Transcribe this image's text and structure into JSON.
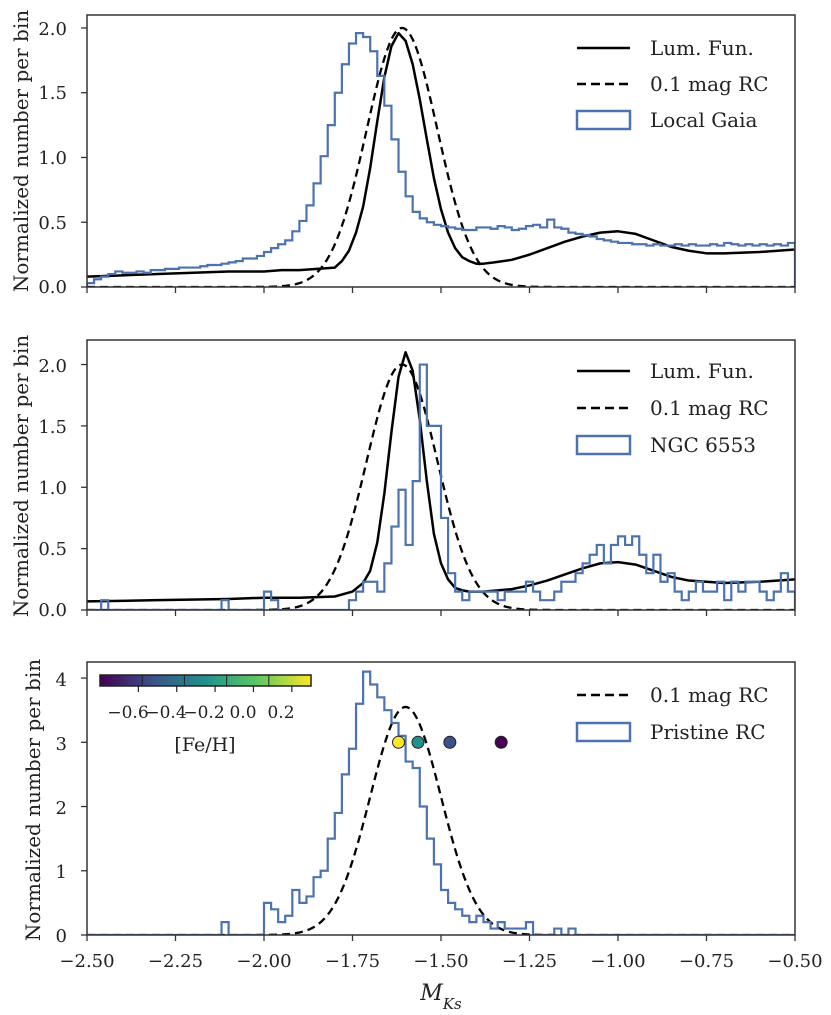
{
  "chart_data": [
    {
      "type": "line",
      "panel": "top",
      "ylabel": "Normalized number per bin",
      "xlabel": "",
      "xlim": [
        -2.5,
        -0.5
      ],
      "ylim": [
        0,
        2.1
      ],
      "yticks": [
        0.0,
        0.5,
        1.0,
        1.5,
        2.0
      ],
      "ytick_labels": [
        "0.0",
        "0.5",
        "1.0",
        "1.5",
        "2.0"
      ],
      "xticks": [
        -2.5,
        -2.25,
        -2.0,
        -1.75,
        -1.5,
        -1.25,
        -1.0,
        -0.75,
        -0.5
      ],
      "legend_position": "top-right",
      "legend": [
        {
          "label": "Lum. Fun.",
          "style": "solid"
        },
        {
          "label": "0.1 mag RC",
          "style": "dashed"
        },
        {
          "label": "Local Gaia",
          "style": "histogram"
        }
      ],
      "series": [
        {
          "name": "Lum. Fun.",
          "style": "solid",
          "color": "#000000",
          "x": [
            -2.5,
            -2.4,
            -2.3,
            -2.2,
            -2.1,
            -2.0,
            -1.95,
            -1.9,
            -1.85,
            -1.8,
            -1.78,
            -1.76,
            -1.74,
            -1.72,
            -1.7,
            -1.68,
            -1.66,
            -1.64,
            -1.62,
            -1.6,
            -1.58,
            -1.56,
            -1.54,
            -1.52,
            -1.5,
            -1.48,
            -1.46,
            -1.44,
            -1.42,
            -1.4,
            -1.38,
            -1.35,
            -1.3,
            -1.25,
            -1.2,
            -1.15,
            -1.1,
            -1.05,
            -1.0,
            -0.95,
            -0.9,
            -0.85,
            -0.8,
            -0.75,
            -0.7,
            -0.6,
            -0.5
          ],
          "y": [
            0.08,
            0.09,
            0.1,
            0.11,
            0.12,
            0.12,
            0.13,
            0.13,
            0.14,
            0.15,
            0.2,
            0.28,
            0.42,
            0.62,
            0.92,
            1.28,
            1.62,
            1.86,
            1.96,
            1.9,
            1.72,
            1.45,
            1.14,
            0.84,
            0.6,
            0.42,
            0.3,
            0.23,
            0.2,
            0.18,
            0.18,
            0.19,
            0.21,
            0.25,
            0.3,
            0.35,
            0.39,
            0.42,
            0.43,
            0.41,
            0.36,
            0.31,
            0.28,
            0.26,
            0.26,
            0.27,
            0.29
          ]
        },
        {
          "name": "0.1 mag RC",
          "style": "dashed",
          "color": "#000000",
          "gaussian": {
            "mu": -1.61,
            "sigma": 0.1,
            "amplitude": 2.0
          }
        },
        {
          "name": "Local Gaia",
          "style": "histogram",
          "color": "#4c72b0",
          "bin_start": -2.5,
          "bin_width": 0.02,
          "values": [
            0.03,
            0.06,
            0.08,
            0.1,
            0.12,
            0.11,
            0.11,
            0.12,
            0.11,
            0.13,
            0.13,
            0.14,
            0.14,
            0.15,
            0.15,
            0.15,
            0.16,
            0.17,
            0.17,
            0.18,
            0.19,
            0.2,
            0.22,
            0.22,
            0.24,
            0.27,
            0.3,
            0.33,
            0.36,
            0.43,
            0.51,
            0.63,
            0.8,
            1.01,
            1.25,
            1.5,
            1.72,
            1.88,
            1.96,
            1.93,
            1.82,
            1.63,
            1.4,
            1.14,
            0.89,
            0.7,
            0.58,
            0.53,
            0.5,
            0.48,
            0.47,
            0.46,
            0.45,
            0.44,
            0.44,
            0.46,
            0.46,
            0.45,
            0.47,
            0.46,
            0.44,
            0.45,
            0.47,
            0.48,
            0.46,
            0.52,
            0.46,
            0.45,
            0.42,
            0.41,
            0.4,
            0.39,
            0.37,
            0.36,
            0.35,
            0.34,
            0.34,
            0.33,
            0.33,
            0.32,
            0.33,
            0.32,
            0.32,
            0.33,
            0.32,
            0.33,
            0.32,
            0.32,
            0.33,
            0.32,
            0.34,
            0.33,
            0.32,
            0.33,
            0.32,
            0.33,
            0.32,
            0.33,
            0.32,
            0.34
          ]
        }
      ]
    },
    {
      "type": "line",
      "panel": "middle",
      "ylabel": "Normalized number per bin",
      "xlabel": "",
      "xlim": [
        -2.5,
        -0.5
      ],
      "ylim": [
        0,
        2.2
      ],
      "yticks": [
        0.0,
        0.5,
        1.0,
        1.5,
        2.0
      ],
      "ytick_labels": [
        "0.0",
        "0.5",
        "1.0",
        "1.5",
        "2.0"
      ],
      "xticks": [
        -2.5,
        -2.25,
        -2.0,
        -1.75,
        -1.5,
        -1.25,
        -1.0,
        -0.75,
        -0.5
      ],
      "legend_position": "top-right",
      "legend": [
        {
          "label": "Lum. Fun.",
          "style": "solid"
        },
        {
          "label": "0.1 mag RC",
          "style": "dashed"
        },
        {
          "label": "NGC 6553",
          "style": "histogram"
        }
      ],
      "series": [
        {
          "name": "Lum. Fun.",
          "style": "solid",
          "color": "#000000",
          "x": [
            -2.5,
            -2.3,
            -2.1,
            -2.0,
            -1.9,
            -1.8,
            -1.75,
            -1.72,
            -1.7,
            -1.68,
            -1.66,
            -1.64,
            -1.62,
            -1.6,
            -1.58,
            -1.56,
            -1.54,
            -1.52,
            -1.5,
            -1.48,
            -1.46,
            -1.44,
            -1.42,
            -1.38,
            -1.3,
            -1.25,
            -1.2,
            -1.15,
            -1.1,
            -1.05,
            -1.0,
            -0.95,
            -0.9,
            -0.85,
            -0.8,
            -0.7,
            -0.6,
            -0.5
          ],
          "y": [
            0.07,
            0.08,
            0.09,
            0.1,
            0.1,
            0.11,
            0.15,
            0.22,
            0.32,
            0.55,
            0.95,
            1.45,
            1.9,
            2.1,
            1.95,
            1.55,
            1.05,
            0.62,
            0.38,
            0.25,
            0.18,
            0.16,
            0.15,
            0.15,
            0.17,
            0.2,
            0.24,
            0.29,
            0.34,
            0.38,
            0.39,
            0.37,
            0.32,
            0.27,
            0.24,
            0.22,
            0.23,
            0.25
          ]
        },
        {
          "name": "0.1 mag RC",
          "style": "dashed",
          "color": "#000000",
          "gaussian": {
            "mu": -1.61,
            "sigma": 0.1,
            "amplitude": 2.0
          }
        },
        {
          "name": "NGC 6553",
          "style": "histogram",
          "color": "#4c72b0",
          "bin_start": -2.5,
          "bin_width": 0.02,
          "values": [
            0,
            0,
            0.08,
            0,
            0,
            0,
            0,
            0,
            0,
            0,
            0,
            0,
            0,
            0,
            0,
            0,
            0,
            0,
            0,
            0.08,
            0,
            0,
            0,
            0,
            0,
            0.15,
            0.08,
            0,
            0,
            0,
            0,
            0,
            0,
            0,
            0,
            0,
            0,
            0.08,
            0.15,
            0.23,
            0.23,
            0.15,
            0.38,
            0.68,
            0.98,
            0.53,
            1.05,
            2.0,
            1.5,
            1.5,
            0.75,
            0.3,
            0.15,
            0.08,
            0.15,
            0.15,
            0.15,
            0.15,
            0.08,
            0.15,
            0.15,
            0.15,
            0.23,
            0.15,
            0.08,
            0.08,
            0.15,
            0.23,
            0.23,
            0.3,
            0.38,
            0.45,
            0.53,
            0.38,
            0.53,
            0.6,
            0.53,
            0.6,
            0.45,
            0.3,
            0.45,
            0.23,
            0.3,
            0.15,
            0.08,
            0.15,
            0.23,
            0.15,
            0.15,
            0.23,
            0.08,
            0.23,
            0.15,
            0.23,
            0.23,
            0.15,
            0.08,
            0.15,
            0.3,
            0.15
          ]
        }
      ]
    },
    {
      "type": "line",
      "panel": "bottom",
      "ylabel": "Normalized number per bin",
      "xlabel": "M_Ks",
      "xlim": [
        -2.5,
        -0.5
      ],
      "ylim": [
        0,
        4.25
      ],
      "yticks": [
        0,
        1,
        2,
        3,
        4
      ],
      "ytick_labels": [
        "0",
        "1",
        "2",
        "3",
        "4"
      ],
      "xticks": [
        -2.5,
        -2.25,
        -2.0,
        -1.75,
        -1.5,
        -1.25,
        -1.0,
        -0.75,
        -0.5
      ],
      "xtick_labels": [
        "−2.50",
        "−2.25",
        "−2.00",
        "−1.75",
        "−1.50",
        "−1.25",
        "−1.00",
        "−0.75",
        "−0.50"
      ],
      "legend_position": "top-right",
      "legend": [
        {
          "label": "0.1 mag RC",
          "style": "dashed"
        },
        {
          "label": "Pristine RC",
          "style": "histogram"
        }
      ],
      "series": [
        {
          "name": "0.1 mag RC",
          "style": "dashed",
          "color": "#000000",
          "gaussian": {
            "mu": -1.6,
            "sigma": 0.1,
            "amplitude": 3.55
          }
        },
        {
          "name": "Pristine RC",
          "style": "histogram",
          "color": "#4c72b0",
          "bin_start": -2.5,
          "bin_width": 0.02,
          "values": [
            0,
            0,
            0,
            0,
            0,
            0,
            0,
            0,
            0,
            0,
            0,
            0,
            0,
            0,
            0,
            0,
            0,
            0,
            0,
            0.2,
            0,
            0,
            0,
            0,
            0,
            0.5,
            0.4,
            0.2,
            0.3,
            0.7,
            0.5,
            0.6,
            0.9,
            1.0,
            1.5,
            1.9,
            2.5,
            2.9,
            3.6,
            4.1,
            3.9,
            3.7,
            3.5,
            3.3,
            3.1,
            2.7,
            2.6,
            2.0,
            1.5,
            1.1,
            0.7,
            0.5,
            0.4,
            0.3,
            0.2,
            0.3,
            0.2,
            0.1,
            0.2,
            0.1,
            0.1,
            0.1,
            0.2,
            0,
            0,
            0,
            0.1,
            0,
            0.1,
            0,
            0,
            0,
            0,
            0,
            0,
            0,
            0,
            0,
            0,
            0,
            0,
            0,
            0,
            0,
            0,
            0,
            0,
            0,
            0,
            0,
            0,
            0,
            0,
            0,
            0,
            0,
            0,
            0,
            0,
            0
          ]
        },
        {
          "name": "metallicity points",
          "style": "scatter",
          "points": [
            {
              "x": -1.62,
              "y": 3.0,
              "feh": 0.25,
              "color": "#fde725"
            },
            {
              "x": -1.565,
              "y": 3.0,
              "feh": -0.15,
              "color": "#21918c"
            },
            {
              "x": -1.475,
              "y": 3.0,
              "feh": -0.45,
              "color": "#3b528b"
            },
            {
              "x": -1.33,
              "y": 3.0,
              "feh": -0.7,
              "color": "#440154"
            }
          ]
        }
      ],
      "colorbar": {
        "label": "[Fe/H]",
        "range": [
          -0.8,
          0.3
        ],
        "ticks": [
          -0.6,
          -0.4,
          -0.2,
          0.0,
          0.2
        ],
        "tick_labels": [
          "−0.6",
          "−0.4",
          "−0.2",
          "0.0",
          "0.2"
        ],
        "colors": [
          "#440154",
          "#3b528b",
          "#21918c",
          "#5ec962",
          "#fde725"
        ]
      }
    }
  ],
  "colors": {
    "histogram": "#4c72b0",
    "line": "#000000",
    "axes": "#333333"
  }
}
